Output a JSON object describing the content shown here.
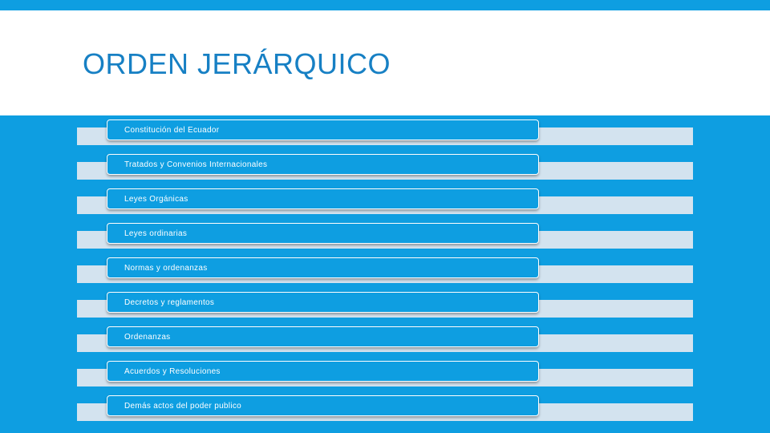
{
  "title": "ORDEN JERÁRQUICO",
  "levels": [
    "Constitución del Ecuador",
    "Tratados y Convenios Internacionales",
    "Leyes Orgánicas",
    "Leyes ordinarias",
    "Normas y ordenanzas",
    "Decretos y reglamentos",
    "Ordenanzas",
    "Acuerdos y Resoluciones",
    "Demás actos del poder publico"
  ],
  "colors": {
    "background": "#0e9ee1",
    "header": "#ffffff",
    "title": "#1780c4",
    "band": "#d3e3ef",
    "box": "#0e9ee1"
  }
}
